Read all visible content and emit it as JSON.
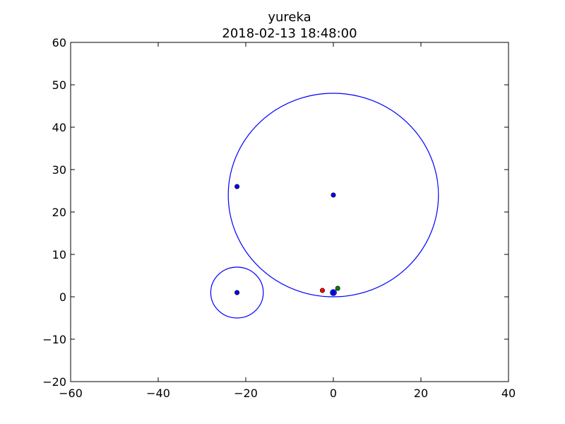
{
  "chart_data": {
    "type": "scatter",
    "title": "yureka",
    "subtitle": "2018-02-13 18:48:00",
    "xlim": [
      -60,
      40
    ],
    "ylim": [
      -20,
      60
    ],
    "x_ticks": [
      -60,
      -40,
      -20,
      0,
      20,
      40
    ],
    "y_ticks": [
      -20,
      -10,
      0,
      10,
      20,
      30,
      40,
      50,
      60
    ],
    "x_tick_labels": [
      "−60",
      "−40",
      "−20",
      "0",
      "20",
      "40"
    ],
    "y_tick_labels": [
      "−20",
      "−10",
      "0",
      "10",
      "20",
      "30",
      "40",
      "50",
      "60"
    ],
    "grid": false,
    "circles": [
      {
        "cx": 0,
        "cy": 24,
        "r": 24,
        "color": "#0000ff"
      },
      {
        "cx": -22,
        "cy": 1,
        "r": 6,
        "color": "#0000ff"
      },
      {
        "cx": 0,
        "cy": 1,
        "r": 0.7,
        "color": "#0000ff"
      }
    ],
    "points": [
      {
        "x": 0,
        "y": 24,
        "color": "#0000ff"
      },
      {
        "x": -22,
        "y": 26,
        "color": "#0000ff"
      },
      {
        "x": -22,
        "y": 1,
        "color": "#0000ff"
      },
      {
        "x": 0,
        "y": 1,
        "color": "#0000ff"
      },
      {
        "x": -2.5,
        "y": 1.5,
        "color": "#ff0000"
      },
      {
        "x": 1,
        "y": 2,
        "color": "#008000"
      }
    ]
  }
}
